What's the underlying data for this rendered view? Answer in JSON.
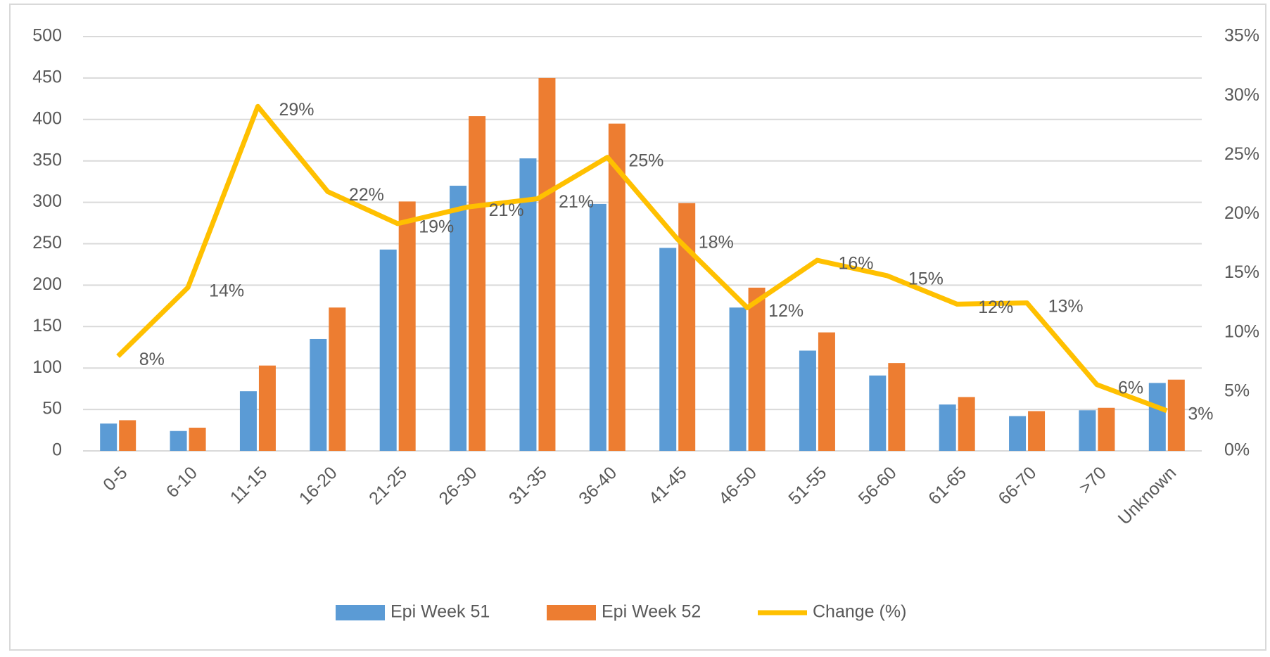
{
  "chart_data": {
    "type": "bar-line",
    "categories": [
      "0-5",
      "6-10",
      "11-15",
      "16-20",
      "21-25",
      "26-30",
      "31-35",
      "36-40",
      "41-45",
      "46-50",
      "51-55",
      "56-60",
      "61-65",
      "66-70",
      ">70",
      "Unknown"
    ],
    "series": [
      {
        "name": "Epi Week 51",
        "type": "bar",
        "color": "#5b9bd5",
        "values": [
          33,
          24,
          72,
          135,
          243,
          320,
          353,
          298,
          245,
          173,
          121,
          91,
          56,
          42,
          49,
          82
        ]
      },
      {
        "name": "Epi Week 52",
        "type": "bar",
        "color": "#ed7d31",
        "values": [
          37,
          28,
          103,
          173,
          301,
          404,
          450,
          395,
          299,
          197,
          143,
          106,
          65,
          48,
          52,
          86
        ]
      },
      {
        "name": "Change (%)",
        "type": "line",
        "axis": "y2",
        "color": "#ffc000",
        "values": [
          8,
          13.8,
          29.1,
          21.9,
          19.2,
          20.6,
          21.3,
          24.8,
          17.9,
          12.1,
          16.1,
          14.8,
          12.4,
          12.5,
          5.6,
          3.4
        ],
        "value_labels": [
          "8%",
          "14%",
          "29%",
          "22%",
          "19%",
          "21%",
          "21%",
          "25%",
          "18%",
          "12%",
          "16%",
          "15%",
          "12%",
          "13%",
          "6%",
          "3%"
        ]
      }
    ],
    "ylim": [
      0,
      500
    ],
    "yticks": [
      0,
      50,
      100,
      150,
      200,
      250,
      300,
      350,
      400,
      450,
      500
    ],
    "y2lim": [
      0,
      35
    ],
    "y2ticks": [
      {
        "value": 0,
        "label": "0%"
      },
      {
        "value": 5,
        "label": "5%"
      },
      {
        "value": 10,
        "label": "10%"
      },
      {
        "value": 15,
        "label": "15%"
      },
      {
        "value": 20,
        "label": "20%"
      },
      {
        "value": 25,
        "label": "25%"
      },
      {
        "value": 30,
        "label": "30%"
      },
      {
        "value": 35,
        "label": "35%"
      }
    ],
    "grid": true,
    "legend": "bottom"
  }
}
